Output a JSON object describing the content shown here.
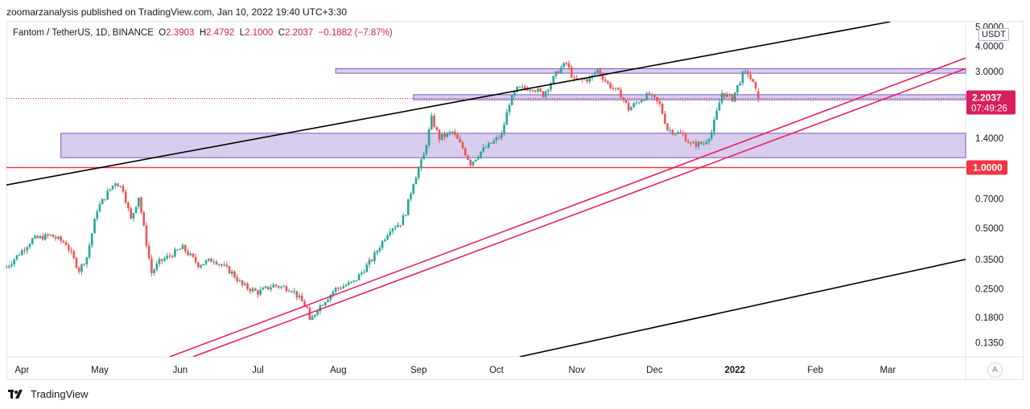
{
  "publisher_line": "zoomarzanalysis published on TradingView.com, Jan 10, 2022 19:40 UTC+3:30",
  "symbol": {
    "name": "Fantom / TetherUS, 1D, BINANCE",
    "o_label": "O",
    "o": "2.3903",
    "h_label": "H",
    "h": "2.4792",
    "l_label": "L",
    "l": "2.1000",
    "c_label": "C",
    "c": "2.2037",
    "change": "−0.1882 (−7.87%)"
  },
  "currency_button": "USDT",
  "auto_button": "A",
  "footer_brand": "TradingView",
  "colors": {
    "up": "#26a69a",
    "down": "#ef5350",
    "zone_fill": "#d1c4e9",
    "zone_border": "#7e57c2",
    "channel_pink": "#e91e63",
    "trend_black": "#000000",
    "support_red": "#f23645",
    "price_tag": "#d81e5b"
  },
  "price_tags": {
    "current_price": "2.2037",
    "countdown": "07:49:26",
    "support_level": "1.0000"
  },
  "chart_data": {
    "type": "candlestick",
    "y_scale": "log",
    "ylim": [
      0.115,
      5.3
    ],
    "y_ticks": [
      "5.0000",
      "4.0000",
      "3.0000",
      "1.4000",
      "0.7000",
      "0.5000",
      "0.3500",
      "0.2500",
      "0.1800",
      "0.1350"
    ],
    "x_ticks": [
      "Apr",
      "May",
      "Jun",
      "Jul",
      "Aug",
      "Sep",
      "Oct",
      "Nov",
      "Dec",
      "2022",
      "Feb",
      "Mar"
    ],
    "xlim": [
      "2021-03-26",
      "2022-03-31"
    ],
    "last_ohlc": {
      "open": 2.3903,
      "high": 2.4792,
      "low": 2.1,
      "close": 2.2037
    },
    "anchors": [
      [
        "2021-03-26",
        0.32
      ],
      [
        "2021-04-05",
        0.44
      ],
      [
        "2021-04-12",
        0.46
      ],
      [
        "2021-04-18",
        0.42
      ],
      [
        "2021-04-23",
        0.31
      ],
      [
        "2021-04-26",
        0.36
      ],
      [
        "2021-04-30",
        0.62
      ],
      [
        "2021-05-04",
        0.75
      ],
      [
        "2021-05-07",
        0.85
      ],
      [
        "2021-05-10",
        0.78
      ],
      [
        "2021-05-13",
        0.55
      ],
      [
        "2021-05-16",
        0.72
      ],
      [
        "2021-05-19",
        0.42
      ],
      [
        "2021-05-21",
        0.3
      ],
      [
        "2021-05-24",
        0.34
      ],
      [
        "2021-06-02",
        0.4
      ],
      [
        "2021-06-08",
        0.33
      ],
      [
        "2021-06-14",
        0.35
      ],
      [
        "2021-06-21",
        0.3
      ],
      [
        "2021-06-25",
        0.26
      ],
      [
        "2021-07-01",
        0.24
      ],
      [
        "2021-07-07",
        0.26
      ],
      [
        "2021-07-14",
        0.25
      ],
      [
        "2021-07-20",
        0.2
      ],
      [
        "2021-07-21",
        0.17
      ],
      [
        "2021-07-24",
        0.2
      ],
      [
        "2021-07-31",
        0.25
      ],
      [
        "2021-08-07",
        0.27
      ],
      [
        "2021-08-14",
        0.35
      ],
      [
        "2021-08-21",
        0.5
      ],
      [
        "2021-08-25",
        0.53
      ],
      [
        "2021-08-27",
        0.6
      ],
      [
        "2021-08-30",
        0.85
      ],
      [
        "2021-09-03",
        1.15
      ],
      [
        "2021-09-06",
        1.75
      ],
      [
        "2021-09-09",
        1.4
      ],
      [
        "2021-09-14",
        1.5
      ],
      [
        "2021-09-18",
        1.25
      ],
      [
        "2021-09-21",
        1.05
      ],
      [
        "2021-09-25",
        1.2
      ],
      [
        "2021-09-30",
        1.35
      ],
      [
        "2021-10-03",
        1.45
      ],
      [
        "2021-10-06",
        2.1
      ],
      [
        "2021-10-09",
        2.45
      ],
      [
        "2021-10-15",
        2.5
      ],
      [
        "2021-10-19",
        2.3
      ],
      [
        "2021-10-25",
        3.05
      ],
      [
        "2021-10-28",
        3.3
      ],
      [
        "2021-10-31",
        2.7
      ],
      [
        "2021-11-06",
        2.75
      ],
      [
        "2021-11-09",
        3.05
      ],
      [
        "2021-11-13",
        2.6
      ],
      [
        "2021-11-18",
        2.3
      ],
      [
        "2021-11-21",
        1.95
      ],
      [
        "2021-11-26",
        2.2
      ],
      [
        "2021-11-29",
        2.3
      ],
      [
        "2021-12-03",
        2.05
      ],
      [
        "2021-12-06",
        1.55
      ],
      [
        "2021-12-12",
        1.45
      ],
      [
        "2021-12-15",
        1.3
      ],
      [
        "2021-12-20",
        1.32
      ],
      [
        "2021-12-23",
        1.5
      ],
      [
        "2021-12-27",
        2.35
      ],
      [
        "2021-12-31",
        2.2
      ],
      [
        "2022-01-04",
        2.9
      ],
      [
        "2022-01-06",
        2.95
      ],
      [
        "2022-01-08",
        2.6
      ],
      [
        "2022-01-10",
        2.2037
      ]
    ],
    "horizontal_zones": [
      {
        "from": "2021-04-16",
        "to": "2022-03-31",
        "low": 1.12,
        "high": 1.48
      },
      {
        "from": "2021-08-30",
        "to": "2022-03-31",
        "low": 2.17,
        "high": 2.3
      },
      {
        "from": "2021-07-31",
        "to": "2022-03-31",
        "low": 2.94,
        "high": 3.1
      }
    ],
    "horizontal_lines": [
      {
        "price": 1.0
      }
    ],
    "trend_lines": [
      {
        "color": "black",
        "from": [
          "2021-03-26",
          0.82
        ],
        "to": [
          "2022-03-02",
          5.3
        ]
      },
      {
        "color": "black",
        "from": [
          "2021-10-10",
          0.115
        ],
        "to": [
          "2022-03-31",
          0.35
        ]
      },
      {
        "color": "pink",
        "from": [
          "2021-05-28",
          0.115
        ],
        "to": [
          "2022-03-31",
          3.5
        ]
      },
      {
        "color": "pink",
        "from": [
          "2021-06-06",
          0.115
        ],
        "to": [
          "2022-03-31",
          3.1
        ]
      }
    ]
  }
}
